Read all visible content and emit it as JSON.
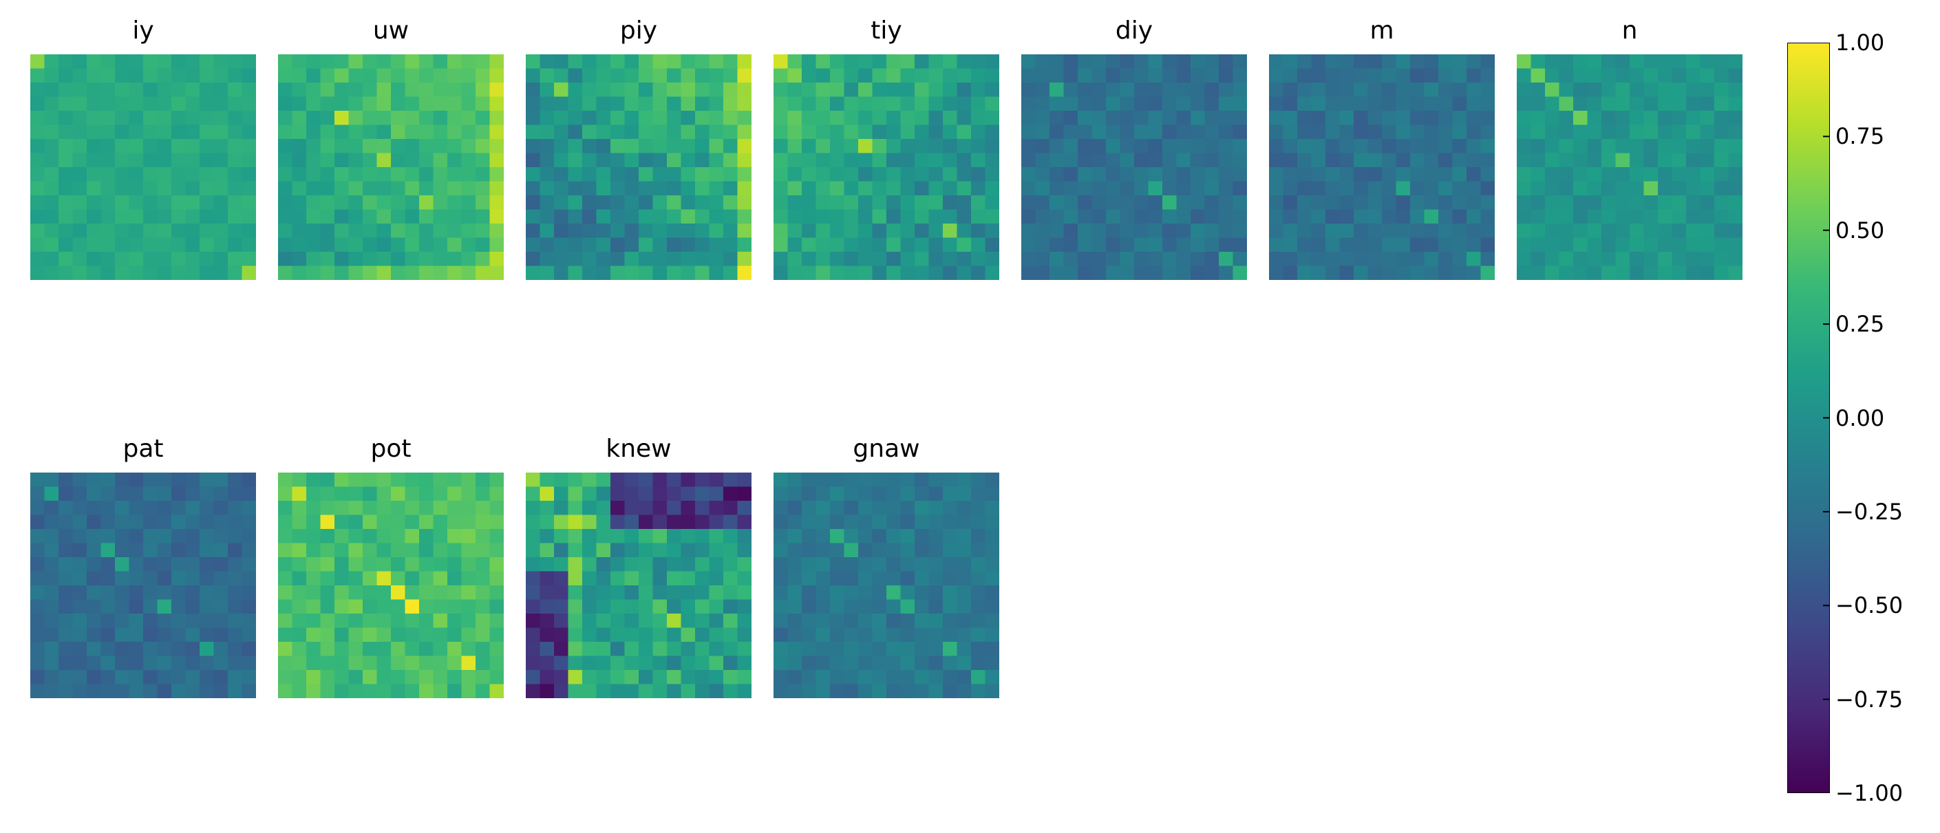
{
  "chart_data": {
    "type": "heatmap",
    "colormap": "viridis",
    "value_range": [
      -1.0,
      1.0
    ],
    "panels": [
      {
        "title": "iy",
        "row": 0,
        "col": 0,
        "base": 0.22,
        "gradient": "uniform",
        "amp": 0.1,
        "seed": 3
      },
      {
        "title": "uw",
        "row": 0,
        "col": 1,
        "base": 0.3,
        "gradient": "top-right-high",
        "amp": 0.25,
        "seed": 7
      },
      {
        "title": "piy",
        "row": 0,
        "col": 2,
        "base": 0.1,
        "gradient": "top-right-high",
        "amp": 0.45,
        "seed": 11
      },
      {
        "title": "tiy",
        "row": 0,
        "col": 3,
        "base": 0.15,
        "gradient": "left-top-high",
        "amp": 0.4,
        "seed": 13
      },
      {
        "title": "diy",
        "row": 0,
        "col": 4,
        "base": -0.25,
        "gradient": "uniform",
        "amp": 0.18,
        "seed": 17
      },
      {
        "title": "m",
        "row": 0,
        "col": 5,
        "base": -0.25,
        "gradient": "uniform",
        "amp": 0.2,
        "seed": 19
      },
      {
        "title": "n",
        "row": 0,
        "col": 6,
        "base": 0.05,
        "gradient": "uniform",
        "amp": 0.15,
        "seed": 23
      },
      {
        "title": "pat",
        "row": 1,
        "col": 0,
        "base": -0.3,
        "gradient": "uniform",
        "amp": 0.15,
        "seed": 29
      },
      {
        "title": "pot",
        "row": 1,
        "col": 1,
        "base": 0.4,
        "gradient": "uniform",
        "amp": 0.3,
        "seed": 31
      },
      {
        "title": "knew",
        "row": 1,
        "col": 2,
        "base": 0.15,
        "gradient": "cross",
        "amp": 0.5,
        "seed": 37
      },
      {
        "title": "gnaw",
        "row": 1,
        "col": 3,
        "base": -0.2,
        "gradient": "uniform",
        "amp": 0.18,
        "seed": 41
      }
    ],
    "colorbar": {
      "ticks": [
        1.0,
        0.75,
        0.5,
        0.25,
        0.0,
        -0.25,
        -0.5,
        -0.75,
        -1.0
      ],
      "tick_labels": [
        "1.00",
        "0.75",
        "0.50",
        "0.25",
        "0.00",
        "−0.25",
        "−0.50",
        "−0.75",
        "−1.00"
      ]
    }
  }
}
